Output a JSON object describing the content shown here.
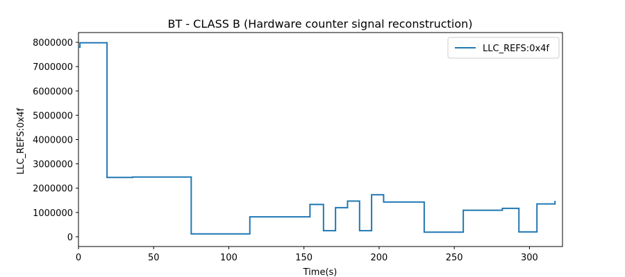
{
  "chart_data": {
    "type": "line",
    "step": true,
    "title": "BT - CLASS B (Hardware counter signal reconstruction)",
    "xlabel": "Time(s)",
    "ylabel": "LLC_REFS:0x4f",
    "xlim": [
      0,
      322
    ],
    "ylim": [
      -400000,
      8400000
    ],
    "xticks": [
      0,
      50,
      100,
      150,
      200,
      250,
      300
    ],
    "yticks": [
      0,
      1000000,
      2000000,
      3000000,
      4000000,
      5000000,
      6000000,
      7000000,
      8000000
    ],
    "grid": false,
    "legend_position": "top-right",
    "series": [
      {
        "name": "LLC_REFS:0x4f",
        "color": "#1f77b4",
        "x": [
          0,
          1,
          2,
          18,
          19,
          35,
          36,
          74,
          75,
          113,
          114,
          153,
          154,
          162,
          163,
          170,
          171,
          178,
          179,
          186,
          187,
          194,
          195,
          202,
          203,
          229,
          230,
          255,
          256,
          281,
          282,
          292,
          293,
          304,
          305,
          316,
          317
        ],
        "y": [
          7800000,
          7980000,
          7980000,
          7980000,
          2440000,
          2440000,
          2460000,
          2460000,
          120000,
          120000,
          820000,
          820000,
          1330000,
          1330000,
          250000,
          250000,
          1200000,
          1200000,
          1470000,
          1470000,
          250000,
          250000,
          1730000,
          1730000,
          1430000,
          1430000,
          190000,
          190000,
          1090000,
          1090000,
          1170000,
          1170000,
          200000,
          200000,
          1350000,
          1350000,
          1480000
        ]
      }
    ]
  }
}
